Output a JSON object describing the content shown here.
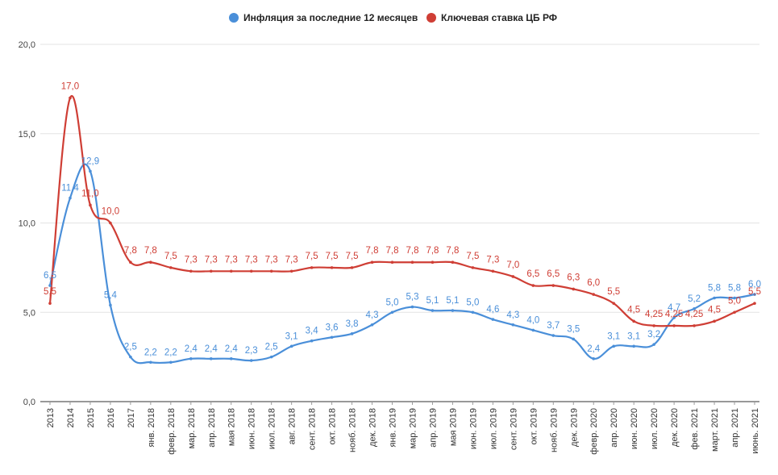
{
  "chart_data": {
    "type": "line",
    "title": "",
    "xlabel": "",
    "ylabel": "",
    "ylim": [
      0,
      20
    ],
    "yticks": [
      "0,0",
      "5,0",
      "10,0",
      "15,0",
      "20,0"
    ],
    "grid": "horizontal",
    "legend_position": "top-center",
    "categories": [
      "2013",
      "2014",
      "2015",
      "2016",
      "2017",
      "янв. 2018",
      "февр. 2018",
      "мар. 2018",
      "апр. 2018",
      "мая 2018",
      "июн. 2018",
      "июл. 2018",
      "авг. 2018",
      "сент. 2018",
      "окт. 2018",
      "нояб. 2018",
      "дек. 2018",
      "янв. 2019",
      "мар. 2019",
      "апр. 2019",
      "мая 2019",
      "июн. 2019",
      "июл. 2019",
      "сент. 2019",
      "окт. 2019",
      "нояб. 2019",
      "дек. 2019",
      "февр. 2020",
      "апр. 2020",
      "июн. 2020",
      "июл. 2020",
      "дек. 2020",
      "фев. 2021",
      "март. 2021",
      "апр. 2021",
      "июнь. 2021"
    ],
    "series": [
      {
        "name": "Инфляция за последние 12 месяцев",
        "color": "#4a8fd9",
        "values": [
          6.5,
          11.4,
          12.9,
          5.4,
          2.5,
          2.2,
          2.2,
          2.4,
          2.4,
          2.4,
          2.3,
          2.5,
          3.1,
          3.4,
          3.6,
          3.8,
          4.3,
          5.0,
          5.3,
          5.1,
          5.1,
          5.0,
          4.6,
          4.3,
          4.0,
          3.7,
          3.5,
          2.4,
          3.1,
          3.1,
          3.2,
          4.7,
          5.2,
          5.8,
          5.8,
          6.0
        ],
        "labels": [
          "6,5",
          "11,4",
          "12,9",
          "5,4",
          "2,5",
          "2,2",
          "2,2",
          "2,4",
          "2,4",
          "2,4",
          "2,3",
          "2,5",
          "3,1",
          "3,4",
          "3,6",
          "3,8",
          "4,3",
          "5,0",
          "5,3",
          "5,1",
          "5,1",
          "5,0",
          "4,6",
          "4,3",
          "4,0",
          "3,7",
          "3,5",
          "2,4",
          "3,1",
          "3,1",
          "3,2",
          "4,7",
          "5,2",
          "5,8",
          "5,8",
          "6,0"
        ]
      },
      {
        "name": "Ключевая ставка ЦБ РФ",
        "color": "#cf3e35",
        "values": [
          5.5,
          17.0,
          11.0,
          10.0,
          7.8,
          7.8,
          7.5,
          7.3,
          7.3,
          7.3,
          7.3,
          7.3,
          7.3,
          7.5,
          7.5,
          7.5,
          7.8,
          7.8,
          7.8,
          7.8,
          7.8,
          7.5,
          7.3,
          7.0,
          6.5,
          6.5,
          6.3,
          6.0,
          5.5,
          4.5,
          4.25,
          4.25,
          4.25,
          4.5,
          5.0,
          5.5
        ],
        "labels": [
          "5,5",
          "17,0",
          "11,0",
          "10,0",
          "7,8",
          "7,8",
          "7,5",
          "7,3",
          "7,3",
          "7,3",
          "7,3",
          "7,3",
          "7,3",
          "7,5",
          "7,5",
          "7,5",
          "7,8",
          "7,8",
          "7,8",
          "7,8",
          "7,8",
          "7,5",
          "7,3",
          "7,0",
          "6,5",
          "6,5",
          "6,3",
          "6,0",
          "5,5",
          "4,5",
          "4,25",
          "4,25",
          "4,25",
          "4,5",
          "5,0",
          "5,5"
        ]
      }
    ]
  }
}
